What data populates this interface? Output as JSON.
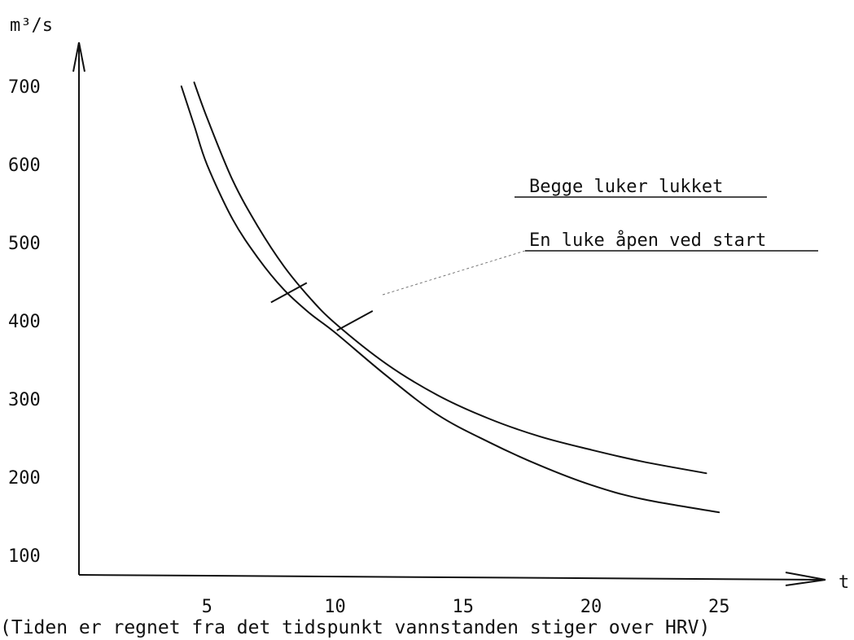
{
  "chart_data": {
    "type": "line",
    "title": "",
    "ylabel": "m³/s",
    "xlabel": "t",
    "caption": "(Tiden er regnet fra det tidspunkt vannstanden stiger over HRV)",
    "xlim": [
      0,
      29
    ],
    "ylim": [
      75,
      750
    ],
    "x_ticks": [
      5,
      10,
      15,
      20,
      25
    ],
    "y_ticks": [
      100,
      200,
      300,
      400,
      500,
      600,
      700
    ],
    "grid": false,
    "legend_placement": "right",
    "series": [
      {
        "name": "Begge luker lukket",
        "x": [
          4.0,
          4.5,
          5.0,
          6.0,
          7.0,
          8.0,
          9.0,
          10.0,
          12.0,
          14.0,
          16.0,
          18.0,
          20.0,
          22.0,
          25.0
        ],
        "y": [
          700,
          650,
          600,
          530,
          480,
          440,
          410,
          385,
          330,
          280,
          245,
          215,
          190,
          172,
          155
        ]
      },
      {
        "name": "En luke åpen ved start",
        "x": [
          4.5,
          5.0,
          6.0,
          7.0,
          8.0,
          9.0,
          10.0,
          12.0,
          14.0,
          16.0,
          18.0,
          20.0,
          22.0,
          24.5
        ],
        "y": [
          705,
          660,
          580,
          520,
          470,
          430,
          397,
          345,
          305,
          275,
          252,
          235,
          220,
          205
        ]
      }
    ]
  }
}
